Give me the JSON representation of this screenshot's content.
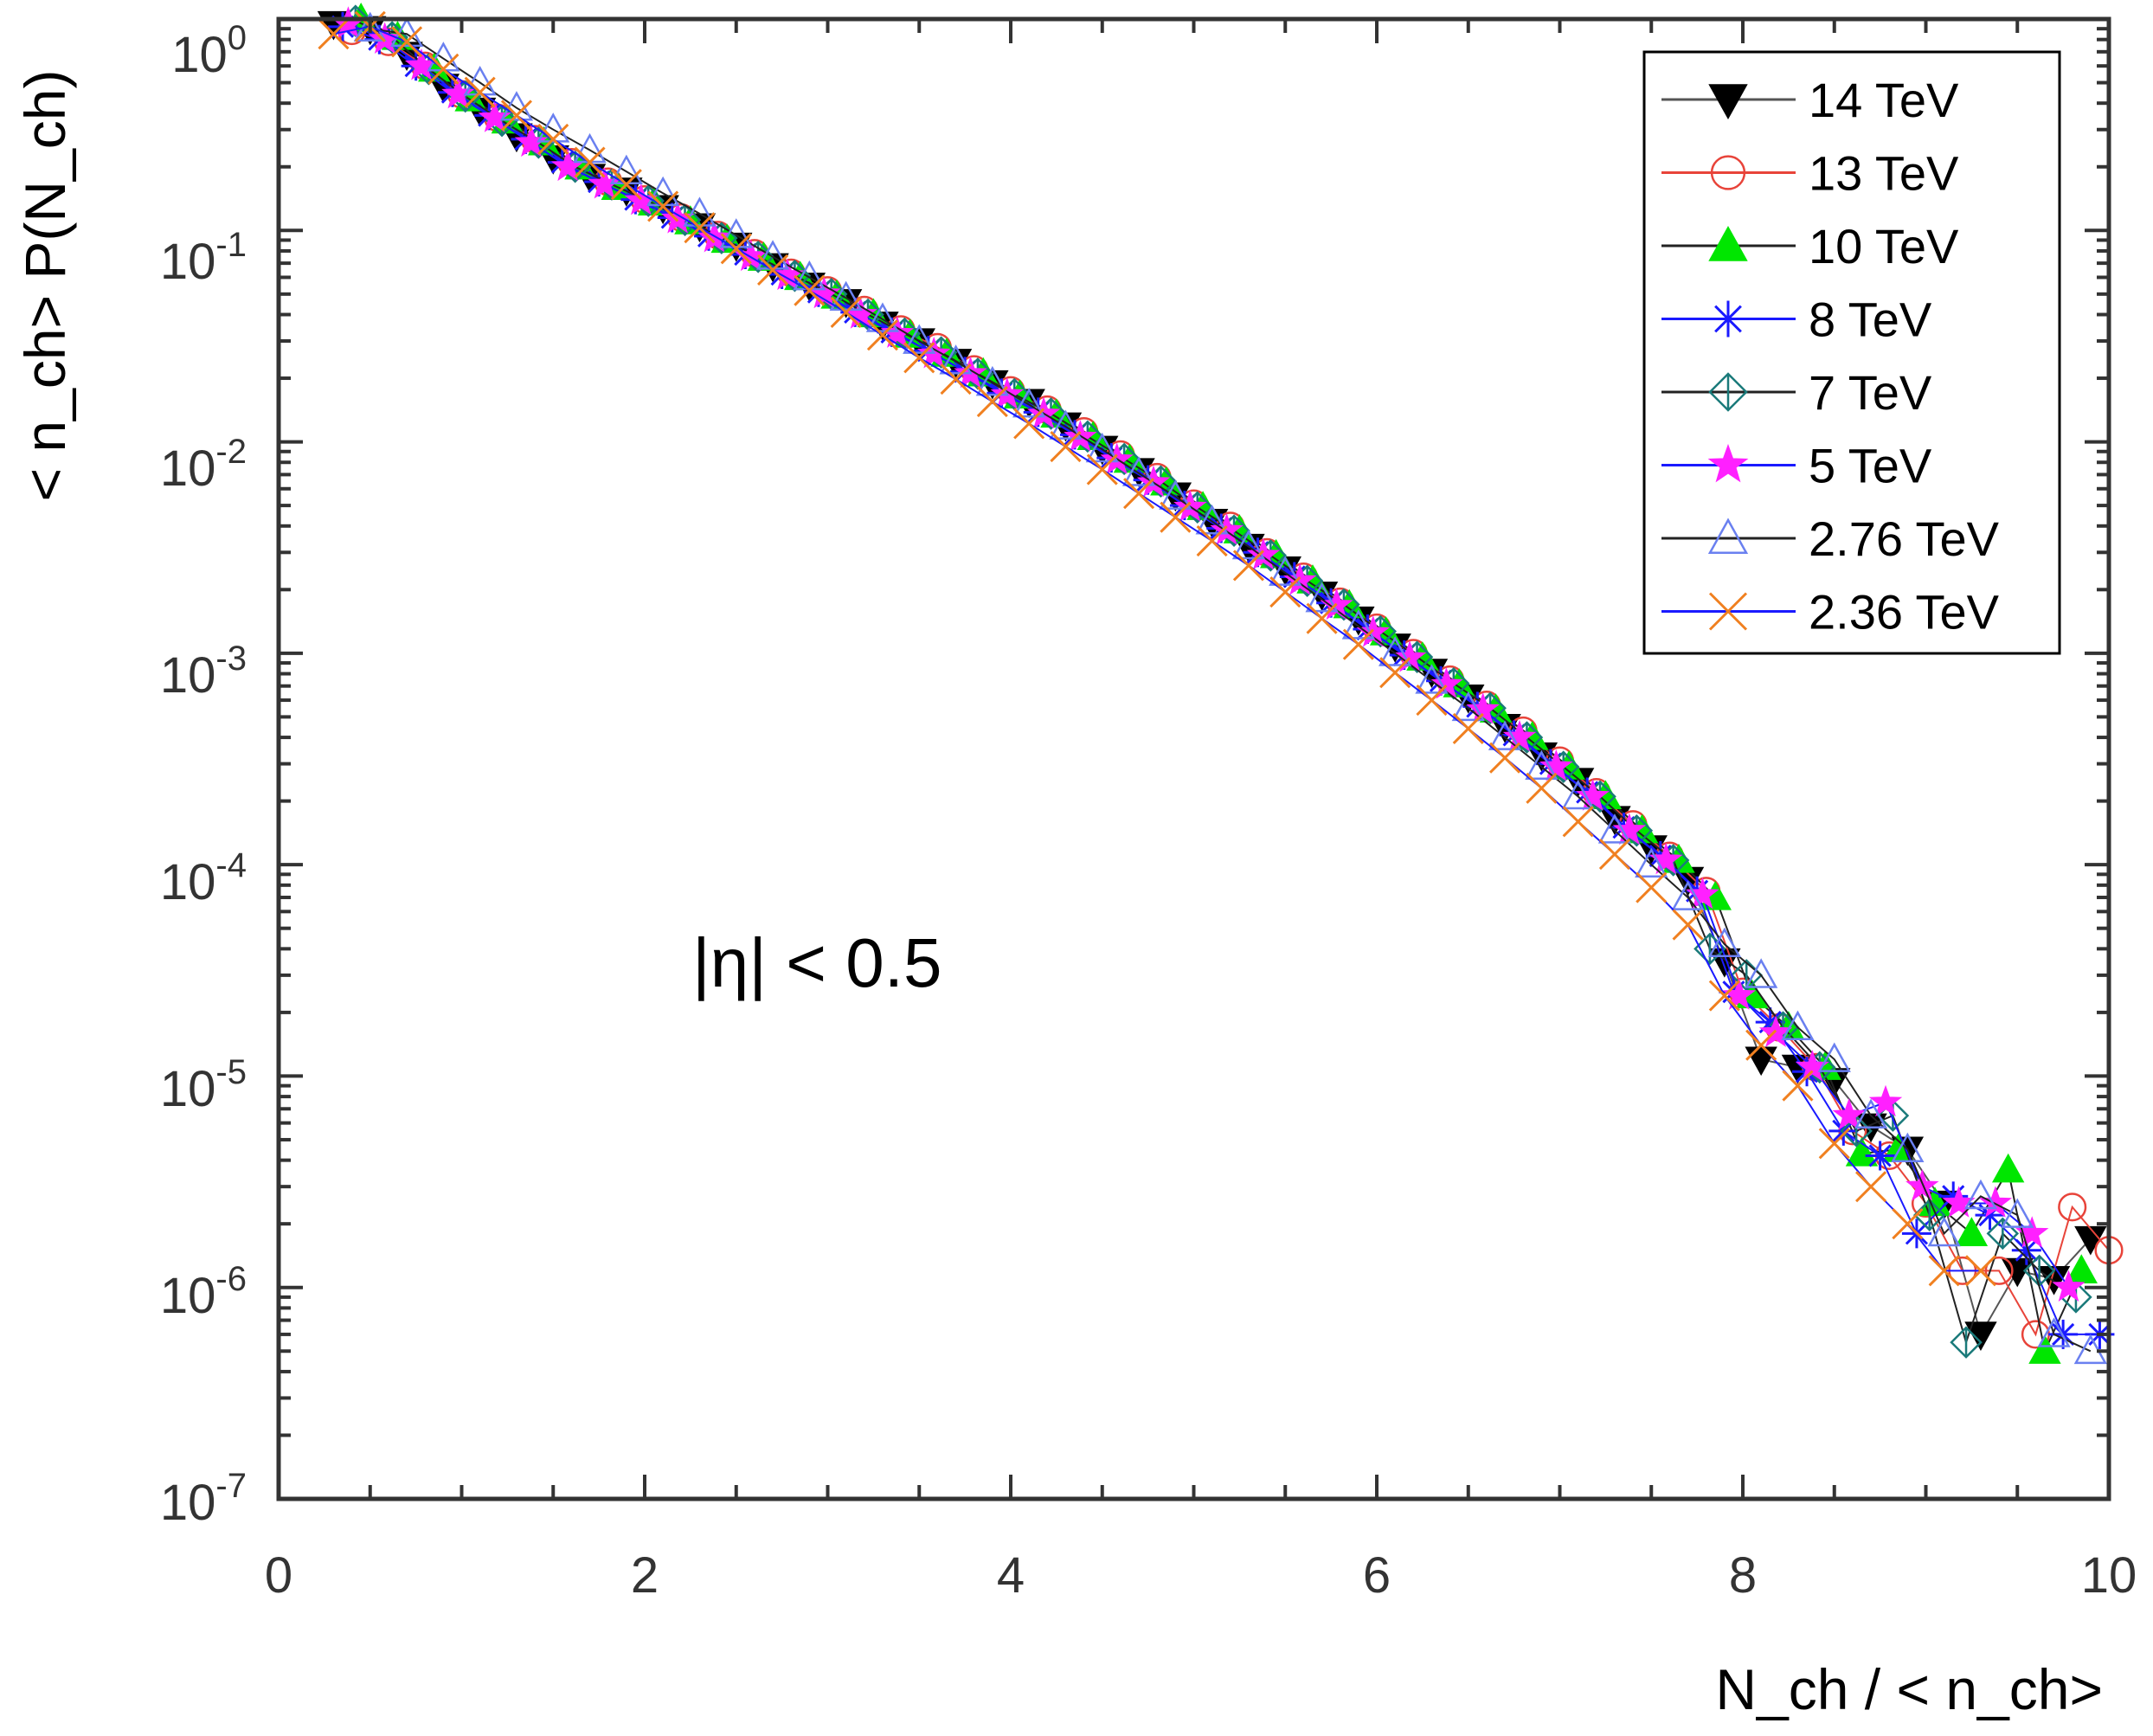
{
  "chart_data": {
    "type": "scatter",
    "title": "",
    "xlabel": "N_ch / < n_ch>",
    "ylabel": "< n_ch> P(N_ch)",
    "xlim": [
      0,
      10
    ],
    "ylim_log10": [
      -7,
      0
    ],
    "y_scale": "log",
    "x_ticks": [
      "0",
      "2",
      "4",
      "6",
      "8",
      "10"
    ],
    "y_ticks": [
      {
        "base": "10",
        "exp": "0"
      },
      {
        "base": "10",
        "exp": "-1"
      },
      {
        "base": "10",
        "exp": "-2"
      },
      {
        "base": "10",
        "exp": "-3"
      },
      {
        "base": "10",
        "exp": "-4"
      },
      {
        "base": "10",
        "exp": "-5"
      },
      {
        "base": "10",
        "exp": "-6"
      },
      {
        "base": "10",
        "exp": "-7"
      }
    ],
    "annotation": "|η| < 0.5",
    "legend_position": "top-right",
    "series": [
      {
        "name": "14 TeV",
        "label": "14 TeV",
        "marker": "triangle-down",
        "color": "#000000",
        "fill": "#000000",
        "line": "#555555",
        "x": [
          0.3,
          0.5,
          0.7,
          0.9,
          1.1,
          1.3,
          1.5,
          1.7,
          1.9,
          2.1,
          2.3,
          2.5,
          2.7,
          2.9,
          3.1,
          3.3,
          3.5,
          3.7,
          3.9,
          4.1,
          4.3,
          4.5,
          4.7,
          4.9,
          5.1,
          5.3,
          5.5,
          5.7,
          5.9,
          6.1,
          6.3,
          6.5,
          6.7,
          6.9,
          7.1,
          7.3,
          7.5,
          7.7,
          7.9,
          8.1,
          8.3,
          8.5,
          8.7,
          8.9,
          9.1,
          9.3,
          9.5,
          9.7,
          9.9
        ],
        "y": [
          0.95,
          0.9,
          0.68,
          0.48,
          0.37,
          0.28,
          0.22,
          0.18,
          0.155,
          0.128,
          0.105,
          0.085,
          0.068,
          0.055,
          0.046,
          0.036,
          0.03,
          0.024,
          0.019,
          0.0155,
          0.012,
          0.0093,
          0.0073,
          0.0056,
          0.0042,
          0.0032,
          0.0025,
          0.0019,
          0.00145,
          0.00108,
          0.00082,
          0.00062,
          0.00045,
          0.00033,
          0.00025,
          0.000165,
          0.00012,
          8.5e-05,
          3.5e-05,
          1.2e-05,
          1.1e-05,
          9.5e-06,
          5.8e-06,
          4.5e-06,
          2.5e-06,
          6e-07,
          1.2e-06,
          1.1e-06,
          1.7e-06
        ]
      },
      {
        "name": "13 TeV",
        "label": "13 TeV",
        "marker": "circle-open",
        "color": "#e8443a",
        "fill": "none",
        "line": "#e8443a",
        "x": [
          0.4,
          0.6,
          0.8,
          1.0,
          1.2,
          1.4,
          1.6,
          1.8,
          2.0,
          2.2,
          2.4,
          2.6,
          2.8,
          3.0,
          3.2,
          3.4,
          3.6,
          3.8,
          4.0,
          4.2,
          4.4,
          4.6,
          4.8,
          5.0,
          5.2,
          5.4,
          5.6,
          5.8,
          6.0,
          6.2,
          6.4,
          6.6,
          6.8,
          7.0,
          7.2,
          7.4,
          7.6,
          7.8,
          8.0,
          8.2,
          8.4,
          8.6,
          8.8,
          9.0,
          9.2,
          9.4,
          9.6,
          9.8,
          10.0
        ],
        "y": [
          0.88,
          0.78,
          0.6,
          0.44,
          0.34,
          0.27,
          0.21,
          0.17,
          0.14,
          0.115,
          0.095,
          0.078,
          0.063,
          0.052,
          0.042,
          0.034,
          0.028,
          0.022,
          0.0175,
          0.0142,
          0.0112,
          0.0087,
          0.0068,
          0.0051,
          0.004,
          0.003,
          0.0023,
          0.00175,
          0.00132,
          0.001,
          0.00075,
          0.00057,
          0.00043,
          0.00031,
          0.00022,
          0.000155,
          0.00011,
          7.5e-05,
          2.5e-05,
          1.7e-05,
          1.1e-05,
          5.5e-06,
          4.2e-06,
          2.5e-06,
          1.2e-06,
          1.2e-06,
          6e-07,
          2.4e-06,
          1.5e-06
        ]
      },
      {
        "name": "10 TeV",
        "label": "10 TeV",
        "marker": "triangle-up",
        "color": "#00e600",
        "fill": "#00e600",
        "line": "#222222",
        "x": [
          0.45,
          0.65,
          0.85,
          1.05,
          1.25,
          1.45,
          1.65,
          1.85,
          2.05,
          2.25,
          2.45,
          2.65,
          2.85,
          3.05,
          3.25,
          3.45,
          3.65,
          3.85,
          4.05,
          4.25,
          4.45,
          4.65,
          4.85,
          5.05,
          5.25,
          5.45,
          5.65,
          5.85,
          6.05,
          6.25,
          6.45,
          6.65,
          6.85,
          7.05,
          7.25,
          7.45,
          7.65,
          7.85,
          8.05,
          8.25,
          8.45,
          8.65,
          8.85,
          9.05,
          9.25,
          9.45,
          9.65,
          9.85
        ],
        "y": [
          1.0,
          0.82,
          0.58,
          0.42,
          0.33,
          0.26,
          0.2,
          0.16,
          0.135,
          0.11,
          0.09,
          0.074,
          0.06,
          0.049,
          0.04,
          0.032,
          0.026,
          0.021,
          0.0165,
          0.0134,
          0.0105,
          0.0082,
          0.0064,
          0.0049,
          0.0038,
          0.0029,
          0.0022,
          0.00168,
          0.00125,
          0.00095,
          0.00071,
          0.00054,
          0.0004,
          0.00029,
          0.00021,
          0.000145,
          0.000105,
          7e-05,
          2.4e-05,
          1.7e-05,
          1.1e-05,
          4.3e-06,
          4.5e-06,
          2.5e-06,
          1.8e-06,
          3.6e-06,
          5e-07,
          1.2e-06
        ]
      },
      {
        "name": "8 TeV",
        "label": "8 TeV",
        "marker": "star-asterisk",
        "color": "#1a1aff",
        "fill": "none",
        "line": "#1a1aff",
        "x": [
          0.35,
          0.55,
          0.75,
          0.95,
          1.15,
          1.35,
          1.55,
          1.75,
          1.95,
          2.15,
          2.35,
          2.55,
          2.75,
          2.95,
          3.15,
          3.35,
          3.55,
          3.75,
          3.95,
          4.15,
          4.35,
          4.55,
          4.75,
          4.95,
          5.15,
          5.35,
          5.55,
          5.75,
          5.95,
          6.15,
          6.35,
          6.55,
          6.75,
          6.95,
          7.15,
          7.35,
          7.55,
          7.75,
          7.95,
          8.15,
          8.35,
          8.55,
          8.75,
          8.95,
          9.15,
          9.35,
          9.55,
          9.75,
          9.95
        ],
        "y": [
          0.92,
          0.8,
          0.6,
          0.45,
          0.35,
          0.27,
          0.21,
          0.17,
          0.14,
          0.115,
          0.094,
          0.077,
          0.062,
          0.051,
          0.041,
          0.033,
          0.027,
          0.0215,
          0.017,
          0.0138,
          0.0108,
          0.0084,
          0.0066,
          0.005,
          0.0039,
          0.003,
          0.0023,
          0.00173,
          0.0013,
          0.00098,
          0.00074,
          0.00056,
          0.00041,
          0.0003,
          0.00022,
          0.00015,
          0.00011,
          7.5e-05,
          2.5e-05,
          1.8e-05,
          1.05e-05,
          5.5e-06,
          4.2e-06,
          1.8e-06,
          2.7e-06,
          2.2e-06,
          1.5e-06,
          6e-07,
          6e-07
        ]
      },
      {
        "name": "7 TeV",
        "label": "7 TeV",
        "marker": "diamond-half",
        "color": "#1a7a7a",
        "fill": "none",
        "line": "#222222",
        "x": [
          0.42,
          0.62,
          0.82,
          1.02,
          1.22,
          1.42,
          1.62,
          1.82,
          2.02,
          2.22,
          2.42,
          2.62,
          2.82,
          3.02,
          3.22,
          3.42,
          3.62,
          3.82,
          4.02,
          4.22,
          4.42,
          4.62,
          4.82,
          5.02,
          5.22,
          5.42,
          5.62,
          5.82,
          6.02,
          6.22,
          6.42,
          6.62,
          6.82,
          7.02,
          7.22,
          7.42,
          7.62,
          7.82,
          8.02,
          8.22,
          8.42,
          8.62,
          8.82,
          9.02,
          9.22,
          9.42,
          9.62,
          9.82
        ],
        "y": [
          0.98,
          0.82,
          0.58,
          0.43,
          0.33,
          0.26,
          0.2,
          0.165,
          0.138,
          0.112,
          0.092,
          0.075,
          0.061,
          0.05,
          0.04,
          0.0325,
          0.0265,
          0.021,
          0.0168,
          0.0136,
          0.0106,
          0.0083,
          0.0065,
          0.0049,
          0.0038,
          0.0029,
          0.0022,
          0.0017,
          0.00127,
          0.00096,
          0.00072,
          0.00055,
          0.0004,
          0.00029,
          0.00021,
          0.000145,
          0.000105,
          4e-05,
          3e-05,
          1.7e-05,
          1.1e-05,
          5.5e-06,
          6.5e-06,
          2.2e-06,
          5.5e-07,
          1.8e-06,
          1.2e-06,
          9e-07
        ]
      },
      {
        "name": "5 TeV",
        "label": "5 TeV",
        "marker": "star-filled",
        "color": "#ff20ff",
        "fill": "#ff20ff",
        "line": "#1a1aff",
        "x": [
          0.38,
          0.58,
          0.78,
          0.98,
          1.18,
          1.38,
          1.58,
          1.78,
          1.98,
          2.18,
          2.38,
          2.58,
          2.78,
          2.98,
          3.18,
          3.38,
          3.58,
          3.78,
          3.98,
          4.18,
          4.38,
          4.58,
          4.78,
          4.98,
          5.18,
          5.38,
          5.58,
          5.78,
          5.98,
          6.18,
          6.38,
          6.58,
          6.78,
          6.98,
          7.18,
          7.38,
          7.58,
          7.78,
          7.98,
          8.18,
          8.38,
          8.58,
          8.78,
          8.98,
          9.18,
          9.38,
          9.58,
          9.78
        ],
        "y": [
          0.95,
          0.8,
          0.6,
          0.44,
          0.34,
          0.26,
          0.2,
          0.165,
          0.138,
          0.113,
          0.092,
          0.075,
          0.061,
          0.05,
          0.04,
          0.0325,
          0.026,
          0.021,
          0.0167,
          0.0135,
          0.0105,
          0.0082,
          0.0064,
          0.0049,
          0.0038,
          0.0029,
          0.0022,
          0.00168,
          0.00125,
          0.00095,
          0.00071,
          0.00054,
          0.0004,
          0.00029,
          0.00021,
          0.000145,
          0.000105,
          7.2e-05,
          2.4e-05,
          1.6e-05,
          1.1e-05,
          6.5e-06,
          7.5e-06,
          3e-06,
          2.5e-06,
          2.5e-06,
          1.8e-06,
          1e-06
        ]
      },
      {
        "name": "2.76 TeV",
        "label": "2.76 TeV",
        "marker": "triangle-up-open",
        "color": "#6a80f0",
        "fill": "none",
        "line": "#222222",
        "x": [
          0.5,
          0.7,
          0.9,
          1.1,
          1.3,
          1.5,
          1.7,
          1.9,
          2.1,
          2.3,
          2.5,
          2.7,
          2.9,
          3.1,
          3.3,
          3.5,
          3.7,
          3.9,
          4.1,
          4.3,
          4.5,
          4.7,
          4.9,
          5.1,
          5.3,
          5.5,
          5.7,
          5.9,
          6.1,
          6.3,
          6.5,
          6.7,
          6.9,
          7.1,
          7.3,
          7.5,
          7.7,
          7.9,
          8.1,
          8.3,
          8.5,
          8.7,
          8.9,
          9.1,
          9.3,
          9.5,
          9.7,
          9.9
        ],
        "y": [
          0.9,
          0.85,
          0.65,
          0.5,
          0.38,
          0.3,
          0.24,
          0.19,
          0.15,
          0.12,
          0.095,
          0.075,
          0.06,
          0.048,
          0.038,
          0.03,
          0.024,
          0.019,
          0.015,
          0.0118,
          0.0092,
          0.0071,
          0.0055,
          0.0042,
          0.0032,
          0.0024,
          0.0018,
          0.00134,
          0.001,
          0.00074,
          0.00055,
          0.0004,
          0.00029,
          0.00021,
          0.000145,
          0.0001,
          7e-05,
          4.2e-05,
          3e-05,
          1.7e-05,
          1.2e-05,
          6.5e-06,
          4.5e-06,
          1.8e-06,
          2.7e-06,
          2.2e-06,
          6e-07,
          5e-07
        ]
      },
      {
        "name": "2.36 TeV",
        "label": "2.36 TeV",
        "marker": "cross",
        "color": "#f08020",
        "fill": "none",
        "line": "#1a1aff",
        "x": [
          0.3,
          0.5,
          0.7,
          0.9,
          1.1,
          1.3,
          1.5,
          1.7,
          1.9,
          2.1,
          2.3,
          2.5,
          2.7,
          2.9,
          3.1,
          3.3,
          3.5,
          3.7,
          3.9,
          4.1,
          4.3,
          4.5,
          4.7,
          4.9,
          5.1,
          5.3,
          5.5,
          5.7,
          5.9,
          6.1,
          6.3,
          6.5,
          6.7,
          6.9,
          7.1,
          7.3,
          7.5,
          7.7,
          7.9,
          8.1,
          8.3,
          8.5,
          8.7,
          8.9,
          9.1,
          9.3
        ],
        "y": [
          0.85,
          0.92,
          0.78,
          0.58,
          0.45,
          0.35,
          0.27,
          0.21,
          0.165,
          0.13,
          0.103,
          0.082,
          0.065,
          0.052,
          0.041,
          0.032,
          0.025,
          0.0198,
          0.0155,
          0.0122,
          0.0095,
          0.0074,
          0.0057,
          0.0044,
          0.0034,
          0.0026,
          0.00195,
          0.00146,
          0.0011,
          0.00081,
          0.0006,
          0.00044,
          0.00032,
          0.00023,
          0.00016,
          0.000112,
          7.8e-05,
          5.2e-05,
          2.4e-05,
          1.4e-05,
          9e-06,
          4.8e-06,
          3e-06,
          2e-06,
          1.2e-06,
          1.2e-06
        ]
      }
    ]
  }
}
